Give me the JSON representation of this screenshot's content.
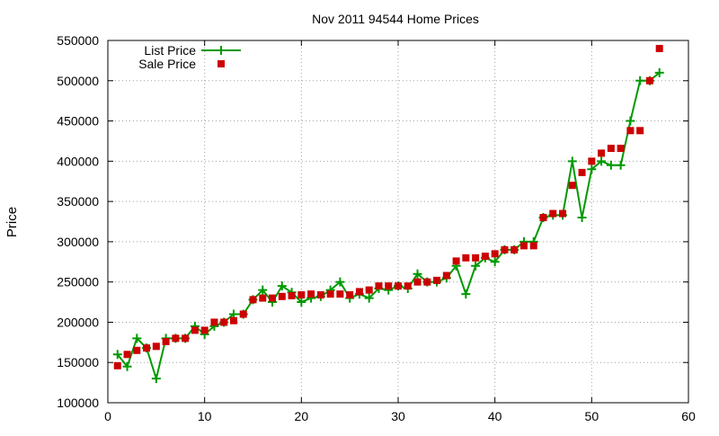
{
  "chart_data": {
    "type": "line",
    "title": "Nov 2011 94544 Home Prices",
    "xlabel": "",
    "ylabel": "Price",
    "xlim": [
      0,
      60
    ],
    "ylim": [
      100000,
      550000
    ],
    "xticks": [
      0,
      10,
      20,
      30,
      40,
      50,
      60
    ],
    "yticks": [
      100000,
      150000,
      200000,
      250000,
      300000,
      350000,
      400000,
      450000,
      500000,
      550000
    ],
    "grid": true,
    "legend_position": "top-left",
    "series": [
      {
        "name": "List Price",
        "style": "line-plus",
        "color": "#009900",
        "x": [
          1,
          2,
          3,
          4,
          5,
          6,
          7,
          8,
          9,
          10,
          11,
          12,
          13,
          14,
          15,
          16,
          17,
          18,
          19,
          20,
          21,
          22,
          23,
          24,
          25,
          26,
          27,
          28,
          29,
          30,
          31,
          32,
          33,
          34,
          35,
          36,
          37,
          38,
          39,
          40,
          41,
          42,
          43,
          44,
          45,
          46,
          47,
          48,
          49,
          50,
          51,
          52,
          53,
          54,
          55,
          56,
          57
        ],
        "y": [
          160000,
          145000,
          180000,
          168000,
          130000,
          180000,
          180000,
          180000,
          195000,
          185000,
          195000,
          200000,
          210000,
          210000,
          228000,
          240000,
          225000,
          245000,
          237000,
          225000,
          230000,
          232000,
          240000,
          250000,
          230000,
          235000,
          230000,
          242000,
          240000,
          245000,
          242000,
          260000,
          250000,
          250000,
          255000,
          270000,
          235000,
          270000,
          280000,
          275000,
          290000,
          290000,
          300000,
          300000,
          330000,
          333000,
          333000,
          400000,
          330000,
          390000,
          400000,
          395000,
          395000,
          450000,
          500000,
          500000,
          510000
        ]
      },
      {
        "name": "Sale Price",
        "style": "square",
        "color": "#cc0000",
        "x": [
          1,
          2,
          3,
          4,
          5,
          6,
          7,
          8,
          9,
          10,
          11,
          12,
          13,
          14,
          15,
          16,
          17,
          18,
          19,
          20,
          21,
          22,
          23,
          24,
          25,
          26,
          27,
          28,
          29,
          30,
          31,
          32,
          33,
          34,
          35,
          36,
          37,
          38,
          39,
          40,
          41,
          42,
          43,
          44,
          45,
          46,
          47,
          48,
          49,
          50,
          51,
          52,
          53,
          54,
          55,
          56,
          57
        ],
        "y": [
          146000,
          160000,
          165000,
          168000,
          170000,
          176000,
          180000,
          180000,
          190000,
          190000,
          200000,
          200000,
          202000,
          210000,
          228000,
          230000,
          230000,
          232000,
          233000,
          234000,
          235000,
          234000,
          235000,
          235000,
          234000,
          238000,
          240000,
          245000,
          245000,
          245000,
          245000,
          250000,
          250000,
          252000,
          258000,
          276000,
          280000,
          280000,
          282000,
          285000,
          290000,
          290000,
          295000,
          295000,
          330000,
          335000,
          335000,
          370000,
          386000,
          400000,
          410000,
          416000,
          416000,
          438000,
          438000,
          500000,
          540000
        ]
      }
    ]
  }
}
